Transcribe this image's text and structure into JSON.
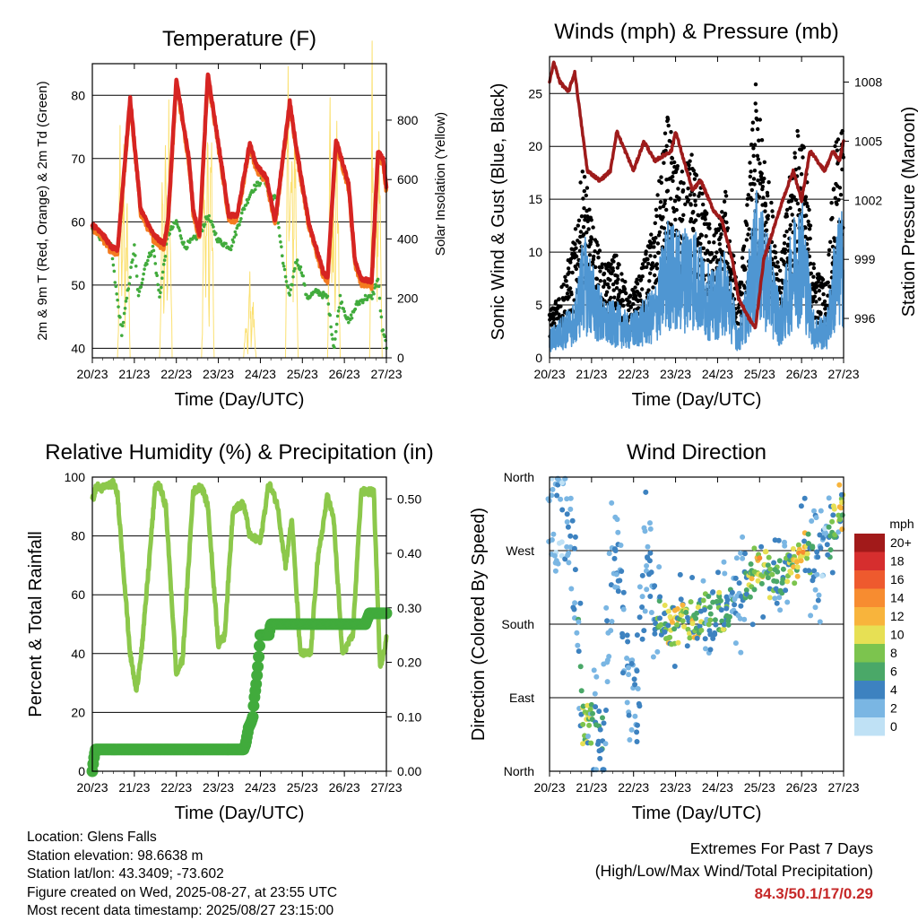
{
  "chart_data": [
    {
      "id": "temp",
      "type": "line",
      "title": "Temperature (F)",
      "xlabel": "Time (Day/UTC)",
      "ylabel": "2m & 9m T (Red, Orange) & 2m Td (Green)",
      "y2label": "Solar Insolation (Yellow)",
      "x_ticks": [
        "20/23",
        "21/23",
        "22/23",
        "23/23",
        "24/23",
        "25/23",
        "26/23",
        "27/23"
      ],
      "xlim": [
        0,
        7
      ],
      "ylim": [
        38.5,
        85
      ],
      "y_ticks": [
        40,
        50,
        60,
        70,
        80
      ],
      "y2lim": [
        0,
        990
      ],
      "y2_ticks": [
        0,
        200,
        400,
        600,
        800
      ],
      "colors": {
        "t2m": "#d62422",
        "t9m": "#f47b20",
        "td": "#41ab3c",
        "solar": "#fbe070"
      },
      "series": [
        {
          "key": "t2m",
          "x": [
            0,
            0.2,
            0.45,
            0.6,
            0.9,
            1.15,
            1.45,
            1.7,
            1.8,
            2.0,
            2.3,
            2.4,
            2.55,
            2.75,
            3.1,
            3.25,
            3.45,
            3.75,
            3.9,
            4.15,
            4.35,
            4.7,
            4.85,
            5.15,
            5.3,
            5.5,
            5.6,
            5.8,
            6.1,
            6.25,
            6.4,
            6.65,
            6.8,
            6.92,
            7
          ],
          "y": [
            59.5,
            58.5,
            56,
            55.5,
            79.5,
            62,
            58,
            56.5,
            60,
            82.5,
            70,
            62,
            58,
            83.5,
            68,
            61,
            61,
            72.5,
            69,
            67,
            60,
            79,
            72,
            60,
            56.5,
            52,
            51,
            73,
            66,
            54,
            51,
            50.5,
            71,
            70,
            65.5
          ]
        },
        {
          "key": "td",
          "x": [
            0,
            0.2,
            0.45,
            0.55,
            0.7,
            1.0,
            1.1,
            1.25,
            1.45,
            1.6,
            1.8,
            2.0,
            2.2,
            2.55,
            2.75,
            3.0,
            3.3,
            3.6,
            3.8,
            4.1,
            4.25,
            4.35,
            4.55,
            4.7,
            4.85,
            5.0,
            5.1,
            5.35,
            5.6,
            5.75,
            5.9,
            6.1,
            6.3,
            6.5,
            6.65,
            6.8,
            6.9,
            7
          ],
          "y": [
            59,
            57.5,
            56,
            50,
            42.5,
            56,
            48,
            53,
            56,
            48,
            58,
            60,
            56,
            58,
            61,
            57,
            56,
            62,
            65,
            67,
            63,
            64,
            53,
            48,
            54,
            52,
            48,
            49,
            48,
            40,
            48,
            44,
            47,
            48,
            48,
            51,
            43,
            40.5
          ]
        },
        {
          "key": "solar",
          "x": [
            0,
            0.6,
            0.62,
            0.66,
            0.7,
            0.75,
            0.78,
            0.82,
            0.9,
            1.6,
            1.62,
            1.66,
            1.7,
            1.75,
            1.78,
            1.82,
            1.9,
            2.6,
            2.62,
            2.66,
            2.7,
            2.75,
            2.78,
            2.82,
            2.9,
            3.6,
            3.62,
            3.66,
            3.7,
            3.75,
            3.78,
            3.82,
            3.9,
            4.6,
            4.62,
            4.66,
            4.7,
            4.75,
            4.78,
            4.82,
            4.9,
            5.6,
            5.62,
            5.66,
            5.7,
            5.75,
            5.78,
            5.82,
            5.9,
            6.6,
            6.62,
            6.66,
            6.7,
            6.75,
            6.78,
            6.82,
            6.9,
            7
          ],
          "y": [
            0,
            0,
            120,
            820,
            200,
            800,
            100,
            600,
            0,
            0,
            100,
            760,
            150,
            820,
            200,
            900,
            0,
            0,
            140,
            880,
            300,
            780,
            120,
            860,
            0,
            0,
            50,
            120,
            20,
            300,
            60,
            200,
            0,
            0,
            300,
            920,
            500,
            700,
            300,
            880,
            0,
            0,
            200,
            850,
            400,
            600,
            250,
            820,
            0,
            0,
            250,
            940,
            350,
            700,
            300,
            900,
            0,
            0
          ]
        }
      ]
    },
    {
      "id": "wind",
      "type": "scatter",
      "title": "Winds (mph) & Pressure (mb)",
      "xlabel": "Time (Day/UTC)",
      "ylabel": "Sonic Wind & Gust (Blue, Black)",
      "y2label": "Station Pressure (Maroon)",
      "x_ticks": [
        "20/23",
        "21/23",
        "22/23",
        "23/23",
        "24/23",
        "25/23",
        "26/23",
        "27/23"
      ],
      "xlim": [
        0,
        7
      ],
      "ylim": [
        0,
        28.5
      ],
      "y_ticks": [
        0,
        5,
        10,
        15,
        20,
        25
      ],
      "y2lim": [
        994.0,
        1009.3
      ],
      "y2_ticks": [
        996,
        999,
        1002,
        1005,
        1008
      ],
      "colors": {
        "wind": "#4f96d2",
        "gust": "#000000",
        "pressure": "#9e1b1b"
      },
      "gust_profile": {
        "x": [
          0,
          0.3,
          0.6,
          0.8,
          1.0,
          1.3,
          1.6,
          1.9,
          2.2,
          2.5,
          2.8,
          3.1,
          3.4,
          3.7,
          3.9,
          4.2,
          4.5,
          4.7,
          4.9,
          5.2,
          5.5,
          5.8,
          6.0,
          6.3,
          6.6,
          6.8,
          7
        ],
        "y": [
          3,
          5,
          8,
          13,
          9,
          6,
          7,
          4,
          6,
          9,
          16,
          12,
          14,
          10,
          8,
          11,
          4,
          10,
          18,
          12,
          6,
          14,
          16,
          6,
          5,
          14,
          16
        ]
      },
      "wind_profile": {
        "x": [
          0,
          0.3,
          0.6,
          0.8,
          1.0,
          1.3,
          1.6,
          1.9,
          2.2,
          2.5,
          2.8,
          3.1,
          3.4,
          3.7,
          3.9,
          4.2,
          4.5,
          4.7,
          4.9,
          5.2,
          5.5,
          5.8,
          6.0,
          6.3,
          6.6,
          6.8,
          7
        ],
        "y": [
          2,
          3,
          4,
          9,
          7,
          4,
          4,
          3,
          4,
          5,
          10,
          9,
          10,
          7,
          6,
          8,
          2,
          6,
          12,
          9,
          4,
          10,
          12,
          3,
          3,
          9,
          11
        ]
      },
      "pressure": {
        "x": [
          0,
          0.1,
          0.25,
          0.45,
          0.6,
          0.9,
          1.2,
          1.45,
          1.6,
          1.9,
          2.0,
          2.25,
          2.5,
          2.9,
          3.0,
          3.4,
          3.6,
          3.9,
          4.1,
          4.35,
          4.5,
          4.75,
          4.9,
          5.1,
          5.4,
          5.55,
          5.8,
          6.0,
          6.2,
          6.55,
          6.75,
          6.9,
          7
        ],
        "y": [
          1008,
          1009,
          1008,
          1007.5,
          1008.5,
          1003.5,
          1003,
          1003.5,
          1005.5,
          1004,
          1003.5,
          1005,
          1004,
          1004.5,
          1005.5,
          1002.5,
          1003,
          1001.5,
          1001,
          999,
          997,
          996,
          995.5,
          999,
          1001,
          1002,
          1003.5,
          1002,
          1004.5,
          1003.5,
          1004.5,
          1004,
          1005
        ]
      }
    },
    {
      "id": "rh",
      "type": "line",
      "title": "Relative Humidity (%) & Precipitation (in)",
      "xlabel": "Time (Day/UTC)",
      "ylabel": "Percent & Total Rainfall",
      "x_ticks": [
        "20/23",
        "21/23",
        "22/23",
        "23/23",
        "24/23",
        "25/23",
        "26/23",
        "27/23"
      ],
      "xlim": [
        0,
        7
      ],
      "ylim": [
        0,
        100
      ],
      "y_ticks": [
        0,
        20,
        40,
        60,
        80,
        100
      ],
      "y2lim": [
        0,
        0.54
      ],
      "y2_ticks": [
        "0.00",
        "0.10",
        "0.20",
        "0.30",
        "0.40",
        "0.50"
      ],
      "colors": {
        "rh": "#8cc84b",
        "precip": "#41ab3c"
      },
      "series": [
        {
          "key": "rh",
          "x": [
            0,
            0.1,
            0.2,
            0.5,
            0.6,
            0.9,
            1.05,
            1.2,
            1.5,
            1.6,
            1.75,
            2.0,
            2.15,
            2.4,
            2.6,
            2.75,
            3.0,
            3.15,
            3.35,
            3.6,
            3.75,
            4.0,
            4.2,
            4.4,
            4.6,
            4.75,
            4.95,
            5.2,
            5.35,
            5.6,
            5.75,
            5.95,
            6.2,
            6.4,
            6.7,
            6.85,
            7
          ],
          "y": [
            92,
            97,
            96,
            98,
            94,
            40,
            27,
            45,
            97,
            97,
            90,
            33,
            38,
            95,
            97,
            90,
            43,
            46,
            89,
            91,
            80,
            78,
            98,
            91,
            70,
            86,
            40,
            40,
            70,
            94,
            85,
            40,
            46,
            95,
            95,
            35,
            45
          ]
        },
        {
          "key": "precip",
          "x": [
            0,
            0.03,
            0.05,
            0.08,
            3.6,
            3.65,
            3.72,
            3.78,
            3.82,
            3.85,
            3.9,
            3.95,
            4.0,
            4.2,
            4.25,
            6.5,
            6.6,
            7
          ],
          "y": [
            0,
            0.02,
            0.03,
            0.04,
            0.04,
            0.05,
            0.08,
            0.09,
            0.1,
            0.13,
            0.16,
            0.2,
            0.25,
            0.25,
            0.27,
            0.27,
            0.29,
            0.29
          ]
        }
      ]
    },
    {
      "id": "wdir",
      "type": "scatter",
      "title": "Wind Direction",
      "xlabel": "Time (Day/UTC)",
      "ylabel": "Direction (Colored By Speed)",
      "x_ticks": [
        "20/23",
        "21/23",
        "22/23",
        "23/23",
        "24/23",
        "25/23",
        "26/23",
        "27/23"
      ],
      "xlim": [
        0,
        7
      ],
      "ylim": [
        0,
        360
      ],
      "y_ticks": [
        "North",
        "East",
        "South",
        "West",
        "North"
      ],
      "direction_profile": {
        "x": [
          0,
          0.4,
          0.6,
          0.8,
          1.0,
          1.3,
          1.5,
          1.7,
          1.9,
          2.1,
          2.3,
          2.5,
          2.8,
          3.0,
          3.3,
          3.6,
          3.9,
          4.2,
          4.5,
          4.8,
          5.0,
          5.3,
          5.6,
          5.9,
          6.1,
          6.3,
          6.5,
          6.7,
          6.9,
          7
        ],
        "y": [
          320,
          300,
          250,
          50,
          60,
          40,
          280,
          230,
          80,
          100,
          290,
          200,
          180,
          180,
          185,
          190,
          200,
          190,
          210,
          240,
          260,
          230,
          240,
          260,
          270,
          250,
          250,
          280,
          330,
          310
        ]
      },
      "legend": {
        "title": "mph",
        "labels": [
          "20+",
          "18",
          "16",
          "14",
          "12",
          "10",
          "8",
          "6",
          "4",
          "2",
          "0"
        ],
        "colors": [
          "#a21a1a",
          "#d62e2e",
          "#ee5a2e",
          "#f78c30",
          "#f8b43c",
          "#e7e054",
          "#7cc44e",
          "#4aa868",
          "#3d82c0",
          "#7ab6e3",
          "#bfe1f5"
        ]
      }
    }
  ],
  "info": {
    "location": "Location: Glens Falls",
    "elevation": "Station elevation: 98.6638 m",
    "latlon": "Station lat/lon: 43.3409; -73.602",
    "created": "Figure created on Wed, 2025-08-27, at 23:55 UTC",
    "recent": "Most recent data timestamp: 2025/08/27 23:15:00"
  },
  "extremes": {
    "title": "Extremes For Past 7 Days",
    "subtitle": "(High/Low/Max Wind/Total Precipitation)",
    "values": "84.3/50.1/17/0.29"
  }
}
